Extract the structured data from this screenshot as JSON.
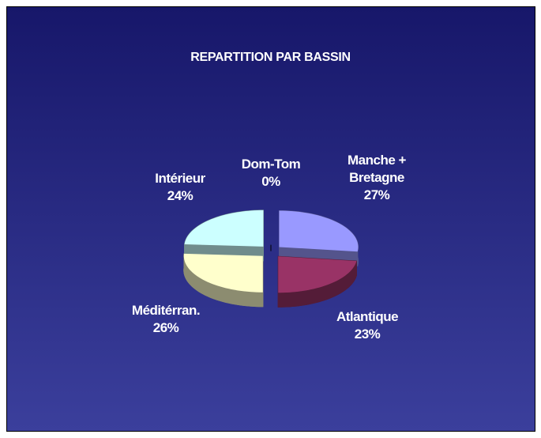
{
  "chart_data": {
    "type": "pie",
    "title": "REPARTITION PAR BASSIN",
    "categories": [
      "Manche + Bretagne",
      "Atlantique",
      "Méditérran.",
      "Intérieur",
      "Dom-Tom"
    ],
    "values": [
      27,
      23,
      26,
      24,
      0
    ],
    "value_labels": [
      "27%",
      "23%",
      "26%",
      "24%",
      "0%"
    ],
    "colors": [
      "#9999ff",
      "#993366",
      "#ffffcc",
      "#ccffff",
      "#333399"
    ]
  }
}
